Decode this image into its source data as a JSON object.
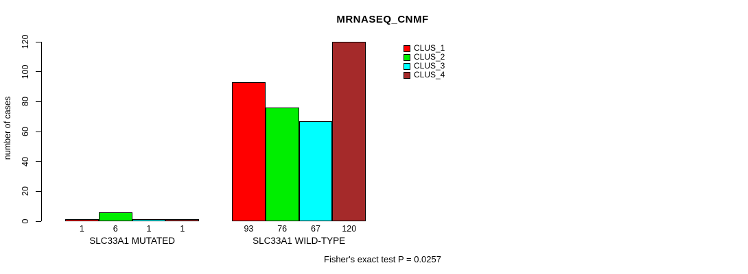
{
  "title": "MRNASEQ_CNMF",
  "footer_note": "Fisher's exact test P = 0.0257",
  "chart_data": {
    "type": "bar",
    "title": "MRNASEQ_CNMF",
    "xlabel": "",
    "ylabel": "number of cases",
    "categories": [
      "SLC33A1 MUTATED",
      "SLC33A1 WILD-TYPE"
    ],
    "series": [
      {
        "name": "CLUS_1",
        "color": "#FF0000",
        "values": [
          1,
          93
        ]
      },
      {
        "name": "CLUS_2",
        "color": "#00EE00",
        "values": [
          6,
          76
        ]
      },
      {
        "name": "CLUS_3",
        "color": "#00FFFF",
        "values": [
          1,
          67
        ]
      },
      {
        "name": "CLUS_4",
        "color": "#A52A2A",
        "values": [
          1,
          120
        ]
      }
    ],
    "ylim": [
      0,
      120
    ],
    "yticks": [
      0,
      20,
      40,
      60,
      80,
      100,
      120
    ],
    "bar_value_labels": [
      [
        "1",
        "6",
        "1",
        "1"
      ],
      [
        "93",
        "76",
        "67",
        "120"
      ]
    ],
    "grid": false,
    "legend_position": "top-right",
    "annotation": "Fisher's exact test P = 0.0257"
  }
}
